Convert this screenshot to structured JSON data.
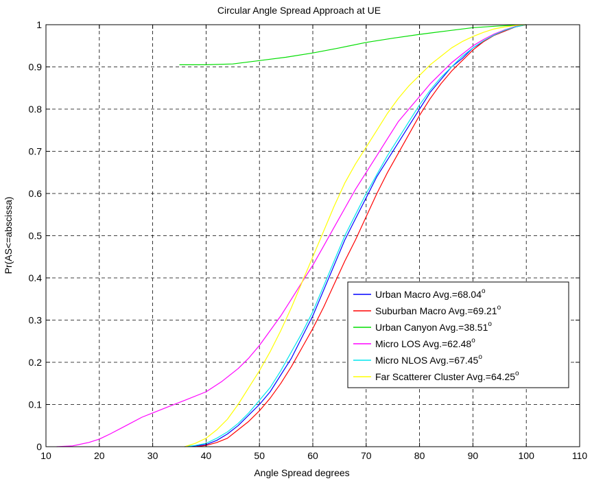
{
  "chart_data": {
    "type": "line",
    "title": "Circular Angle Spread Approach at UE",
    "xlabel": "Angle Spread degrees",
    "ylabel": "Pr(AS<=abscissa)",
    "xlim": [
      10,
      110
    ],
    "ylim": [
      0,
      1
    ],
    "xticks": [
      "10",
      "20",
      "30",
      "40",
      "50",
      "60",
      "70",
      "80",
      "90",
      "100",
      "110"
    ],
    "yticks": [
      "0",
      "0.1",
      "0.2",
      "0.3",
      "0.4",
      "0.5",
      "0.6",
      "0.7",
      "0.8",
      "0.9",
      "1"
    ],
    "grid": true,
    "legend_position": "lower-right",
    "degree_symbol": "o",
    "series": [
      {
        "name": "Urban Macro Avg.=68.04",
        "color": "#0000ff",
        "x": [
          36,
          38,
          40,
          42,
          44,
          46,
          48,
          50,
          52,
          54,
          56,
          58,
          60,
          62,
          64,
          66,
          68,
          70,
          72,
          74,
          76,
          78,
          80,
          82,
          84,
          86,
          88,
          90,
          92,
          94,
          96,
          98,
          100
        ],
        "y": [
          0,
          0.002,
          0.005,
          0.015,
          0.03,
          0.05,
          0.075,
          0.1,
          0.13,
          0.17,
          0.21,
          0.26,
          0.31,
          0.37,
          0.43,
          0.49,
          0.54,
          0.59,
          0.64,
          0.68,
          0.72,
          0.76,
          0.8,
          0.84,
          0.87,
          0.9,
          0.92,
          0.945,
          0.96,
          0.975,
          0.985,
          0.995,
          1.0
        ]
      },
      {
        "name": "Suburban Macro Avg.=69.21",
        "color": "#ff0000",
        "x": [
          38,
          40,
          42,
          44,
          46,
          48,
          50,
          52,
          54,
          56,
          58,
          60,
          62,
          64,
          66,
          68,
          70,
          72,
          74,
          76,
          78,
          80,
          82,
          84,
          86,
          88,
          90,
          92,
          94,
          96,
          98,
          100
        ],
        "y": [
          0,
          0.003,
          0.01,
          0.02,
          0.04,
          0.06,
          0.085,
          0.115,
          0.15,
          0.19,
          0.235,
          0.28,
          0.33,
          0.385,
          0.44,
          0.49,
          0.545,
          0.6,
          0.65,
          0.695,
          0.74,
          0.785,
          0.825,
          0.86,
          0.89,
          0.915,
          0.94,
          0.96,
          0.975,
          0.985,
          0.995,
          1.0
        ]
      },
      {
        "name": "Urban Canyon Avg.=38.51",
        "color": "#00dd00",
        "x": [
          35,
          40,
          45,
          50,
          55,
          60,
          65,
          70,
          75,
          80,
          85,
          90,
          95,
          100
        ],
        "y": [
          0.905,
          0.905,
          0.907,
          0.915,
          0.923,
          0.933,
          0.945,
          0.958,
          0.968,
          0.977,
          0.985,
          0.993,
          0.997,
          1.0
        ]
      },
      {
        "name": "Micro LOS Avg.=62.48",
        "color": "#ff00ff",
        "x": [
          12,
          15,
          18,
          20,
          22,
          25,
          28,
          30,
          33,
          36,
          40,
          43,
          46,
          48,
          50,
          52,
          54,
          56,
          58,
          60,
          62,
          64,
          66,
          68,
          70,
          72,
          74,
          76,
          78,
          80,
          82,
          84,
          86,
          88,
          90,
          92,
          94,
          96,
          98,
          100
        ],
        "y": [
          0,
          0.002,
          0.01,
          0.018,
          0.03,
          0.05,
          0.07,
          0.08,
          0.095,
          0.11,
          0.13,
          0.155,
          0.185,
          0.21,
          0.24,
          0.275,
          0.31,
          0.35,
          0.39,
          0.43,
          0.475,
          0.52,
          0.565,
          0.61,
          0.65,
          0.69,
          0.73,
          0.77,
          0.8,
          0.83,
          0.86,
          0.885,
          0.91,
          0.93,
          0.95,
          0.965,
          0.978,
          0.988,
          0.996,
          1.0
        ]
      },
      {
        "name": "Micro NLOS Avg.=67.45",
        "color": "#00e5ee",
        "x": [
          36,
          38,
          40,
          42,
          44,
          46,
          48,
          50,
          52,
          54,
          56,
          58,
          60,
          62,
          64,
          66,
          68,
          70,
          72,
          74,
          76,
          78,
          80,
          82,
          84,
          86,
          88,
          90,
          92,
          94,
          96,
          98,
          100
        ],
        "y": [
          0,
          0.003,
          0.008,
          0.02,
          0.035,
          0.055,
          0.08,
          0.11,
          0.14,
          0.18,
          0.225,
          0.27,
          0.32,
          0.38,
          0.44,
          0.5,
          0.55,
          0.6,
          0.645,
          0.69,
          0.73,
          0.77,
          0.81,
          0.845,
          0.875,
          0.9,
          0.925,
          0.945,
          0.962,
          0.976,
          0.987,
          0.995,
          1.0
        ]
      },
      {
        "name": "Far Scatterer Cluster Avg.=64.25",
        "color": "#ffff00",
        "x": [
          36,
          38,
          40,
          42,
          44,
          46,
          48,
          50,
          52,
          54,
          56,
          58,
          60,
          62,
          64,
          66,
          68,
          70,
          72,
          74,
          76,
          78,
          80,
          82,
          84,
          86,
          88,
          90,
          92,
          94,
          96,
          98,
          100
        ],
        "y": [
          0,
          0.008,
          0.02,
          0.04,
          0.065,
          0.1,
          0.14,
          0.18,
          0.225,
          0.275,
          0.33,
          0.39,
          0.45,
          0.51,
          0.57,
          0.625,
          0.67,
          0.71,
          0.75,
          0.79,
          0.825,
          0.855,
          0.88,
          0.905,
          0.925,
          0.945,
          0.96,
          0.972,
          0.982,
          0.99,
          0.995,
          0.998,
          1.0
        ]
      }
    ]
  }
}
